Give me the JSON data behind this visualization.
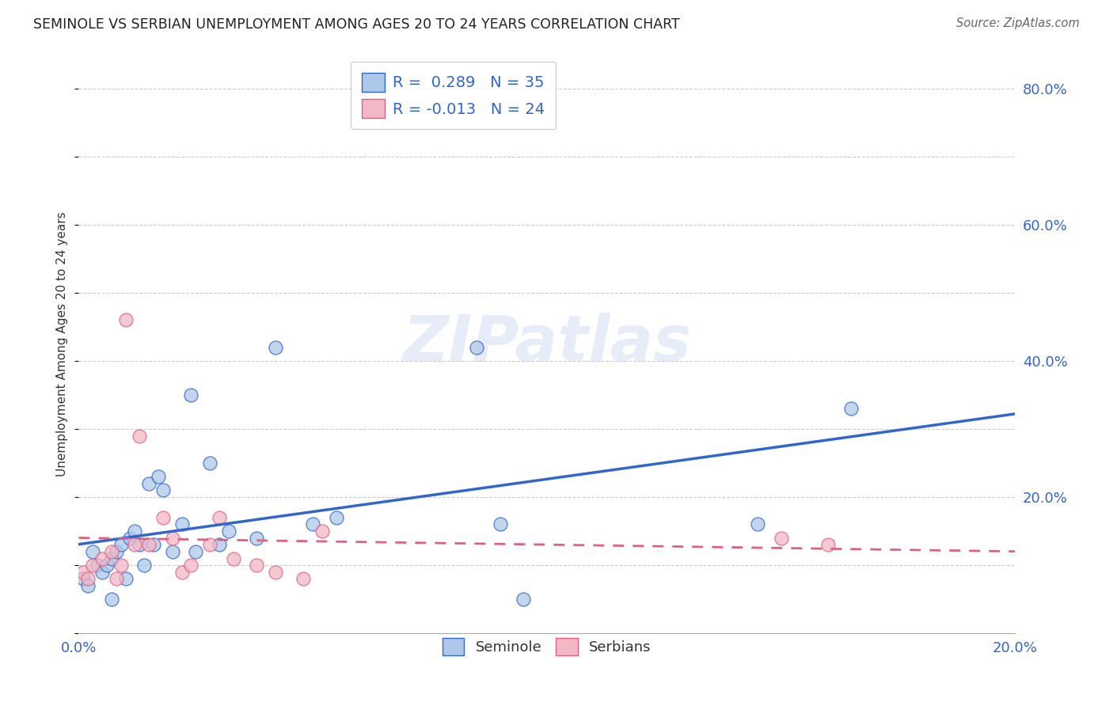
{
  "title": "SEMINOLE VS SERBIAN UNEMPLOYMENT AMONG AGES 20 TO 24 YEARS CORRELATION CHART",
  "source": "Source: ZipAtlas.com",
  "ylabel": "Unemployment Among Ages 20 to 24 years",
  "xlim": [
    0.0,
    0.2
  ],
  "ylim": [
    0.0,
    0.85
  ],
  "xticks": [
    0.0,
    0.04,
    0.08,
    0.12,
    0.16,
    0.2
  ],
  "yticks": [
    0.0,
    0.2,
    0.4,
    0.6,
    0.8
  ],
  "xtick_labels": [
    "0.0%",
    "",
    "",
    "",
    "",
    "20.0%"
  ],
  "right_ytick_labels": [
    "",
    "20.0%",
    "40.0%",
    "60.0%",
    "80.0%"
  ],
  "seminole_R": 0.289,
  "seminole_N": 35,
  "serbian_R": -0.013,
  "serbian_N": 24,
  "seminole_color": "#adc8e8",
  "serbian_color": "#f2b8c6",
  "seminole_line_color": "#3366cc",
  "serbian_line_color": "#e06080",
  "grid_color": "#cccccc",
  "background_color": "#ffffff",
  "watermark": "ZIPatlas",
  "seminole_x": [
    0.001,
    0.002,
    0.003,
    0.004,
    0.005,
    0.006,
    0.007,
    0.007,
    0.008,
    0.009,
    0.01,
    0.011,
    0.012,
    0.013,
    0.014,
    0.015,
    0.016,
    0.017,
    0.018,
    0.02,
    0.022,
    0.024,
    0.025,
    0.028,
    0.03,
    0.032,
    0.038,
    0.042,
    0.05,
    0.055,
    0.085,
    0.09,
    0.095,
    0.145,
    0.165
  ],
  "seminole_y": [
    0.08,
    0.07,
    0.12,
    0.1,
    0.09,
    0.1,
    0.05,
    0.11,
    0.12,
    0.13,
    0.08,
    0.14,
    0.15,
    0.13,
    0.1,
    0.22,
    0.13,
    0.23,
    0.21,
    0.12,
    0.16,
    0.35,
    0.12,
    0.25,
    0.13,
    0.15,
    0.14,
    0.42,
    0.16,
    0.17,
    0.42,
    0.16,
    0.05,
    0.16,
    0.33
  ],
  "serbian_x": [
    0.001,
    0.002,
    0.003,
    0.005,
    0.007,
    0.008,
    0.009,
    0.01,
    0.012,
    0.013,
    0.015,
    0.018,
    0.02,
    0.022,
    0.024,
    0.028,
    0.03,
    0.033,
    0.038,
    0.042,
    0.048,
    0.052,
    0.15,
    0.16
  ],
  "serbian_y": [
    0.09,
    0.08,
    0.1,
    0.11,
    0.12,
    0.08,
    0.1,
    0.46,
    0.13,
    0.29,
    0.13,
    0.17,
    0.14,
    0.09,
    0.1,
    0.13,
    0.17,
    0.11,
    0.1,
    0.09,
    0.08,
    0.15,
    0.14,
    0.13
  ]
}
